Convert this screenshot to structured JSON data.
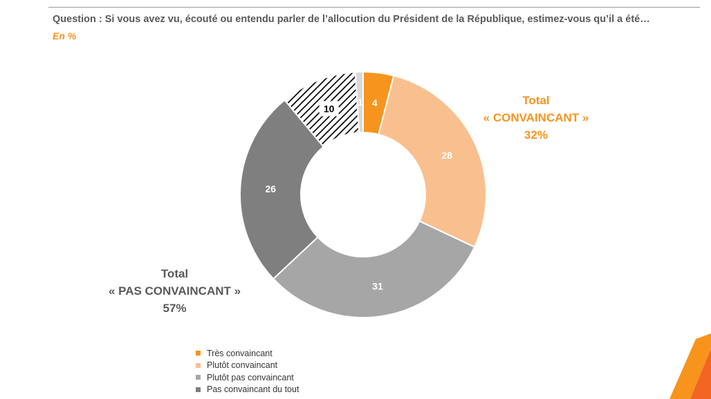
{
  "question": "Question : Si vous avez vu, écouté ou entendu parler de l’allocution du Président de la République, estimez-vous qu’il a été…",
  "unit": "En  %",
  "totals": {
    "convaincant": [
      "Total",
      "« CONVAINCANT »",
      "32%"
    ],
    "pas_convaincant": [
      "Total",
      "« PAS CONVAINCANT »",
      "57%"
    ]
  },
  "colors": {
    "tres_convaincant": "#f7941d",
    "plutot_convaincant": "#f9c08f",
    "plutot_pas_convaincant": "#a6a6a6",
    "pas_convaincant_du_tout": "#7f7f7f",
    "nsp": "#d9d9d9",
    "accent": "#f7941d",
    "text_grey": "#595959"
  },
  "chart_data": {
    "type": "donut",
    "unit": "%",
    "series": [
      {
        "name": "Très convaincant",
        "value": 4,
        "label": "4",
        "color": "#f7941d",
        "label_color": "#ffffff",
        "pattern": "solid"
      },
      {
        "name": "Plutôt convaincant",
        "value": 28,
        "label": "28",
        "color": "#f9c08f",
        "label_color": "#ffffff",
        "pattern": "solid"
      },
      {
        "name": "Plutôt pas convaincant",
        "value": 31,
        "label": "31",
        "color": "#a6a6a6",
        "label_color": "#ffffff",
        "pattern": "solid"
      },
      {
        "name": "Pas convaincant du tout",
        "value": 26,
        "label": "26",
        "color": "#7f7f7f",
        "label_color": "#ffffff",
        "pattern": "solid"
      },
      {
        "value": 10,
        "label": "10",
        "color": "#000000",
        "label_color": "#000000",
        "pattern": "hatch"
      },
      {
        "value": 1,
        "label": "1",
        "color": "#d9d9d9",
        "label_color": "#ffffff",
        "pattern": "solid"
      }
    ],
    "legend_position": "bottom"
  },
  "legend": [
    {
      "label": "Très convaincant",
      "color": "#f7941d"
    },
    {
      "label": "Plutôt convaincant",
      "color": "#f9c08f"
    },
    {
      "label": "Plutôt pas convaincant",
      "color": "#a6a6a6"
    },
    {
      "label": "Pas convaincant du tout",
      "color": "#7f7f7f"
    }
  ]
}
